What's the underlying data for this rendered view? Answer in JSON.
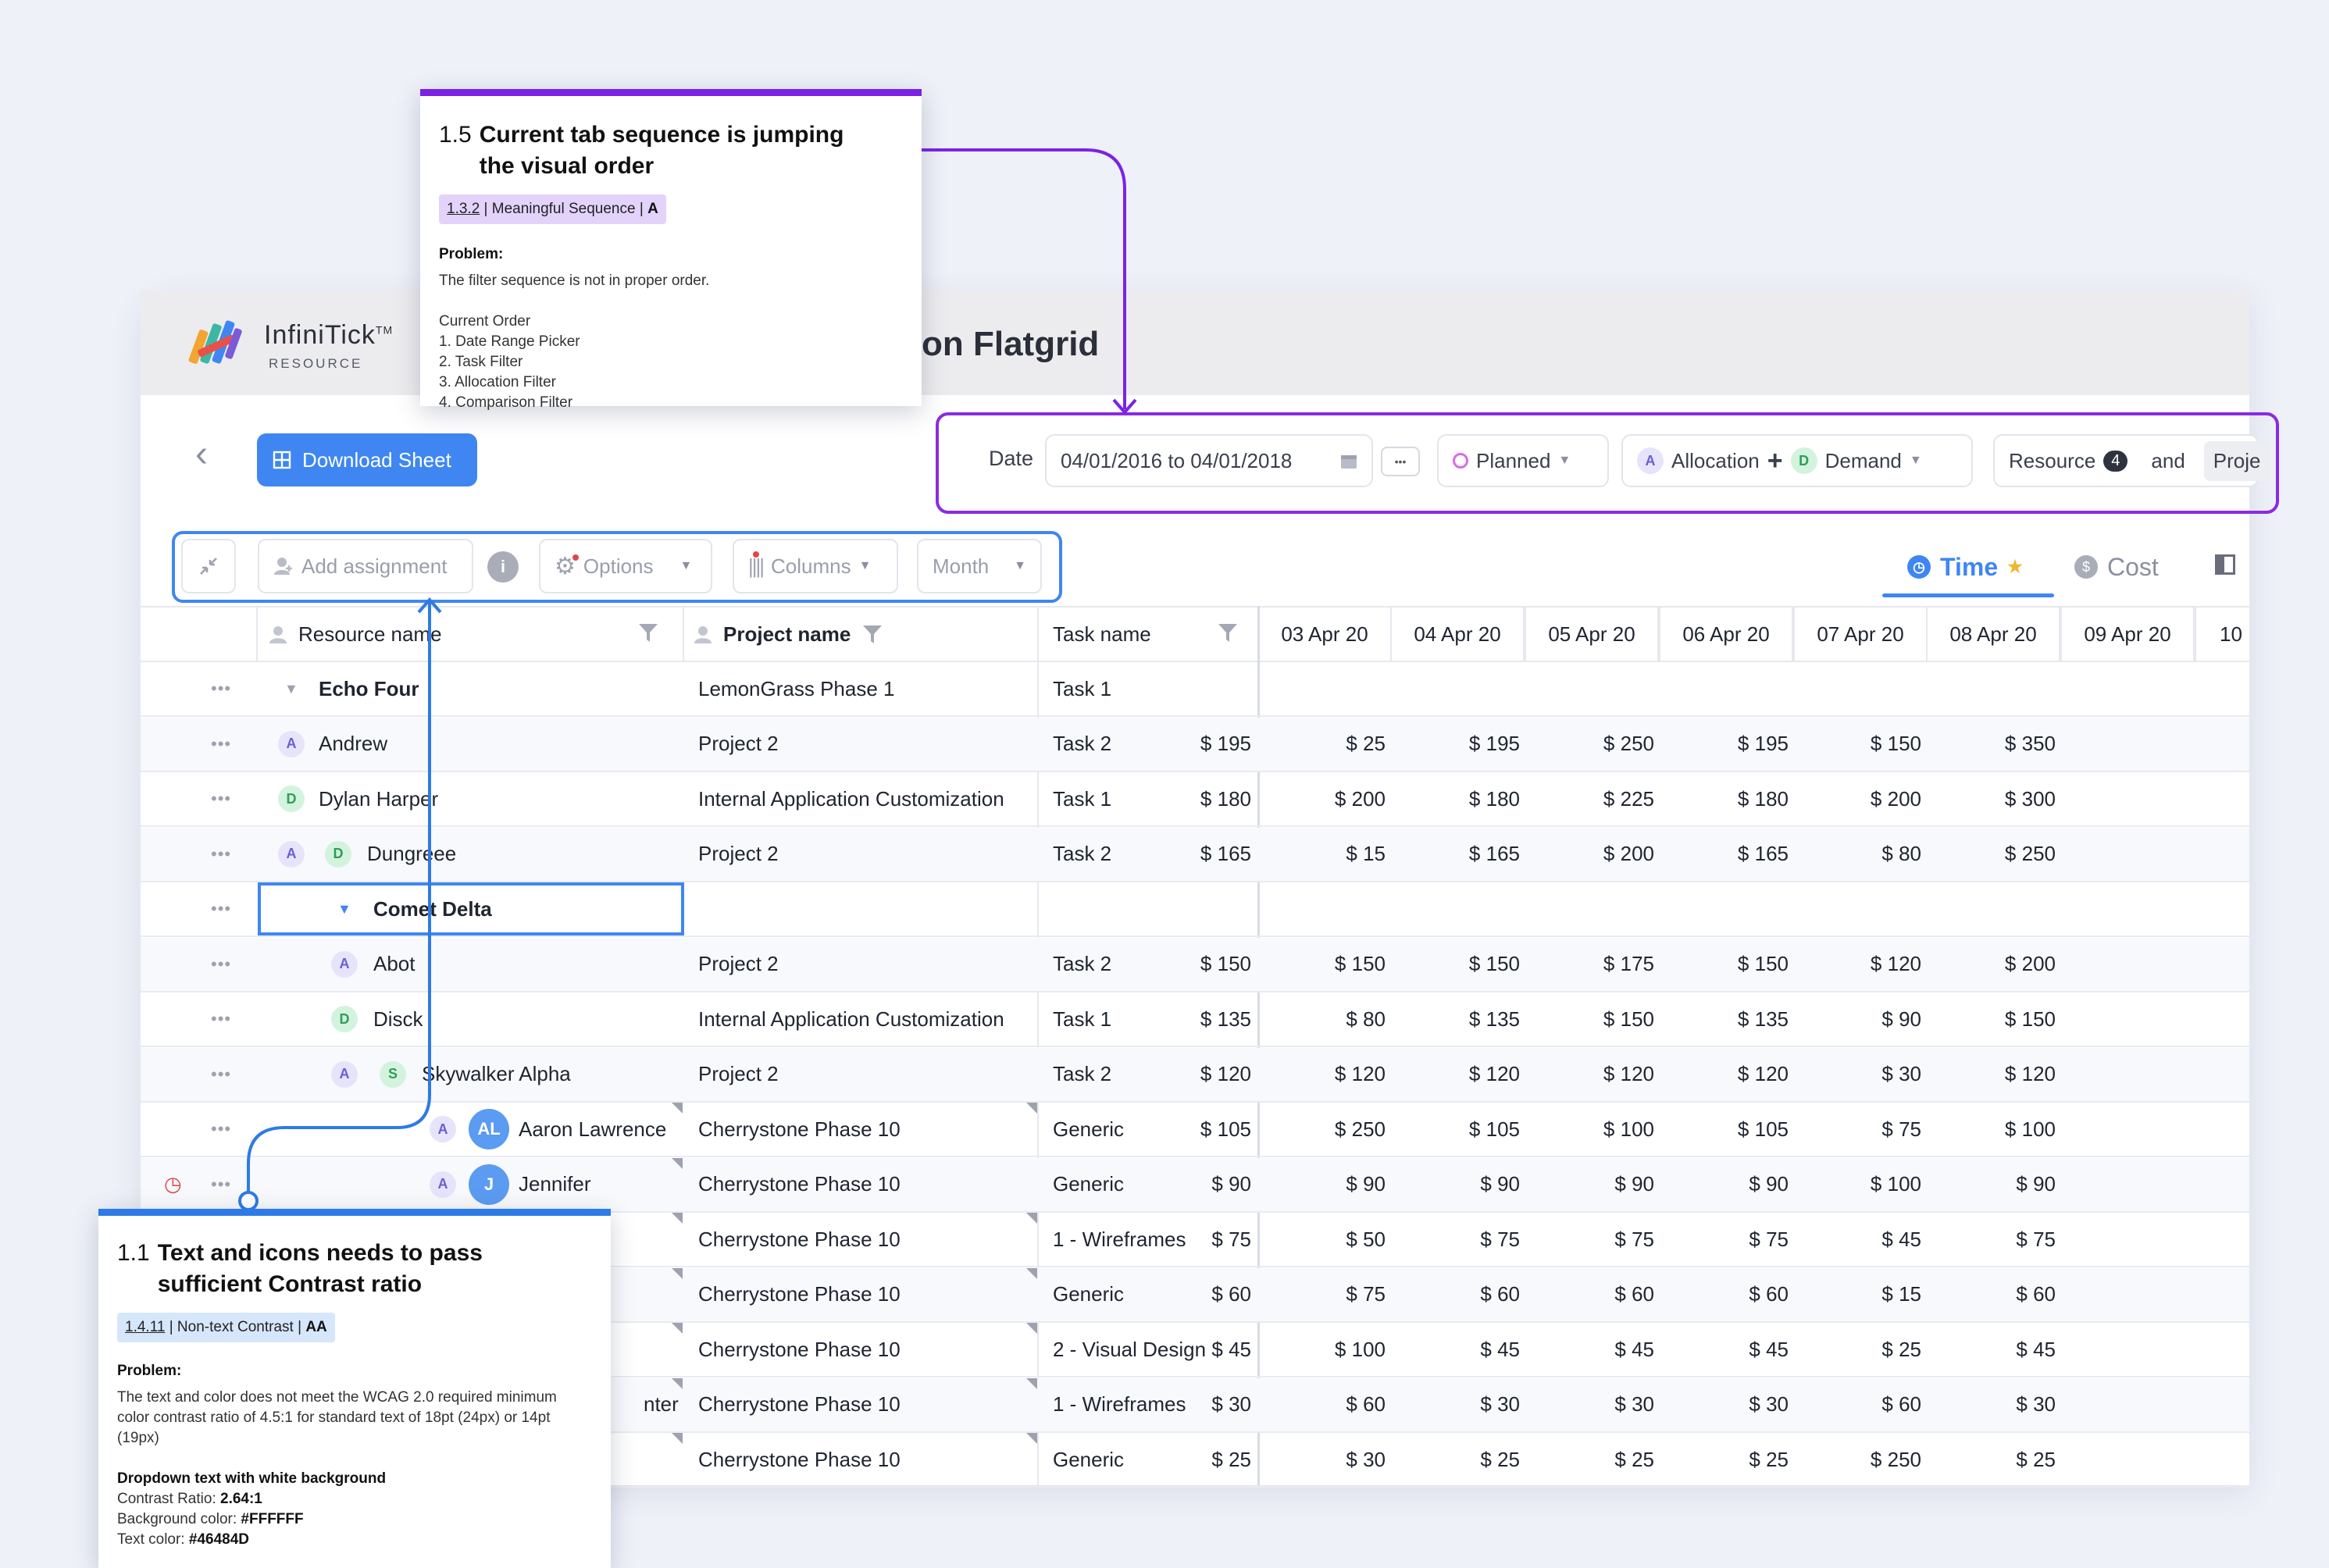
{
  "app": {
    "brand_name": "InfiniTick",
    "brand_tm": "TM",
    "brand_sub": "RESOURCE",
    "page_title": "on Flatgrid",
    "download_label": "Download Sheet"
  },
  "filters": {
    "date_label": "Date",
    "date_value": "04/01/2016 to 04/01/2018",
    "more_label": "•••",
    "planned_label": "Planned",
    "allocation_label": "Allocation",
    "demand_label": "Demand",
    "resource_label": "Resource",
    "resource_count": "4",
    "and_label": "and",
    "proj_label": "Proje"
  },
  "toolbar": {
    "add_assignment": "Add assignment",
    "options": "Options",
    "columns": "Columns",
    "month": "Month",
    "time_tab": "Time",
    "cost_tab": "Cost"
  },
  "grid": {
    "headers": {
      "resource": "Resource name",
      "project": "Project name",
      "task": "Task name",
      "dates": [
        "03 Apr 20",
        "04 Apr 20",
        "05 Apr 20",
        "06 Apr 20",
        "07 Apr 20",
        "08 Apr 20",
        "09 Apr 20",
        "10"
      ]
    },
    "rows": [
      {
        "name": "Echo Four",
        "project": "LemonGrass Phase 1",
        "task": "Task 1",
        "values": []
      },
      {
        "name": "Andrew",
        "project": "Project 2",
        "task": "Task 2",
        "values": [
          "$ 195",
          "$ 25",
          "$ 195",
          "$ 250",
          "$ 195",
          "$ 150",
          "$ 350"
        ]
      },
      {
        "name": "Dylan Harper",
        "project": "Internal Application Customization",
        "task": "Task 1",
        "values": [
          "$ 180",
          "$ 200",
          "$ 180",
          "$ 225",
          "$ 180",
          "$ 200",
          "$ 300"
        ]
      },
      {
        "name": "Dungreee",
        "project": "Project 2",
        "task": "Task 2",
        "values": [
          "$ 165",
          "$ 15",
          "$ 165",
          "$ 200",
          "$ 165",
          "$ 80",
          "$ 250"
        ]
      },
      {
        "name": "Comet Delta",
        "project": "",
        "task": "",
        "values": []
      },
      {
        "name": "Abot",
        "project": "Project 2",
        "task": "Task 2",
        "values": [
          "$ 150",
          "$ 150",
          "$ 150",
          "$ 175",
          "$ 150",
          "$ 120",
          "$ 200"
        ]
      },
      {
        "name": "Disck",
        "project": "Internal Application Customization",
        "task": "Task 1",
        "values": [
          "$ 135",
          "$ 80",
          "$ 135",
          "$ 150",
          "$ 135",
          "$ 90",
          "$ 150"
        ]
      },
      {
        "name": "Skywalker Alpha",
        "project": "Project 2",
        "task": "Task 2",
        "values": [
          "$ 120",
          "$ 120",
          "$ 120",
          "$ 120",
          "$ 120",
          "$ 30",
          "$ 120"
        ]
      },
      {
        "name": "Aaron Lawrence",
        "initials": "AL",
        "project": "Cherrystone Phase 10",
        "task": "Generic",
        "values": [
          "$ 105",
          "$ 250",
          "$ 105",
          "$ 100",
          "$ 105",
          "$ 75",
          "$ 100"
        ]
      },
      {
        "name": "Jennifer",
        "initials": "J",
        "project": "Cherrystone Phase 10",
        "task": "Generic",
        "values": [
          "$ 90",
          "$ 90",
          "$ 90",
          "$ 90",
          "$ 90",
          "$ 100",
          "$ 90"
        ]
      },
      {
        "name": "",
        "project": "Cherrystone Phase 10",
        "task": "1 - Wireframes",
        "values": [
          "$ 75",
          "$ 50",
          "$ 75",
          "$ 75",
          "$ 75",
          "$ 45",
          "$ 75"
        ]
      },
      {
        "name": "",
        "project": "Cherrystone Phase 10",
        "task": "Generic",
        "values": [
          "$ 60",
          "$ 75",
          "$ 60",
          "$ 60",
          "$ 60",
          "$ 15",
          "$ 60"
        ]
      },
      {
        "name": "",
        "project": "Cherrystone Phase 10",
        "task": "2 - Visual Design",
        "values": [
          "$ 45",
          "$ 100",
          "$ 45",
          "$ 45",
          "$ 45",
          "$ 25",
          "$ 45"
        ]
      },
      {
        "name": "nter",
        "project": "Cherrystone Phase 10",
        "task": "1 - Wireframes",
        "values": [
          "$ 30",
          "$ 60",
          "$ 30",
          "$ 30",
          "$ 30",
          "$ 60",
          "$ 30"
        ]
      },
      {
        "name": "",
        "project": "Cherrystone Phase 10",
        "task": "Generic",
        "values": [
          "$ 25",
          "$ 30",
          "$ 25",
          "$ 25",
          "$ 25",
          "$ 250",
          "$ 25"
        ]
      }
    ]
  },
  "notes": {
    "n15": {
      "number": "1.5",
      "title": "Current tab sequence is jumping the visual order",
      "tag_code": "1.3.2",
      "tag_text": " | Meaningful Sequence | ",
      "tag_level": "A",
      "problem_label": "Problem:",
      "problem": "The filter sequence is not in proper order.",
      "order_label": "Current Order",
      "order": [
        "1. Date Range Picker",
        "2. Task Filter",
        "3. Allocation Filter",
        "4. Comparison Filter"
      ],
      "accent": "#7b22e6"
    },
    "n11": {
      "number": "1.1",
      "title": "Text and icons needs to pass sufficient Contrast ratio",
      "tag_code": "1.4.11",
      "tag_text": " | Non-text Contrast | ",
      "tag_level": "AA",
      "problem_label": "Problem:",
      "problem": "The text and color does not meet the WCAG 2.0 required minimum color contrast ratio of 4.5:1 for standard text of 18pt (24px) or 14pt (19px)",
      "detail_title": "Dropdown text with white background",
      "contrast_label": "Contrast Ratio: ",
      "contrast_value": "2.64:1",
      "bg_label": "Background color: ",
      "bg_value": "#FFFFFF",
      "text_label": "Text color: ",
      "text_value": "#46484D",
      "accent": "#2d7be6"
    }
  }
}
